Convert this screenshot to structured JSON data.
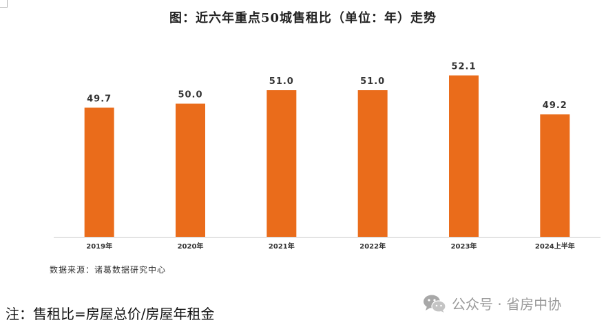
{
  "chart_data": {
    "type": "bar",
    "title": "图：近六年重点50城售租比（单位：年）走势",
    "categories": [
      "2019年",
      "2020年",
      "2021年",
      "2022年",
      "2023年",
      "2024上半年"
    ],
    "values": [
      49.7,
      50.0,
      51.0,
      51.0,
      52.1,
      49.2
    ],
    "value_labels": [
      "49.7",
      "50.0",
      "51.0",
      "51.0",
      "52.1",
      "49.2"
    ],
    "bar_color": "#ea6c1b",
    "ylim": [
      40.1,
      53.1
    ],
    "grid": false
  },
  "source": "数据来源：诸葛数据研究中心",
  "footer_note": "注：售租比=房屋总价/房屋年租金",
  "watermark": {
    "icon": "wechat-icon",
    "text": "公众号 · 省房中协"
  }
}
